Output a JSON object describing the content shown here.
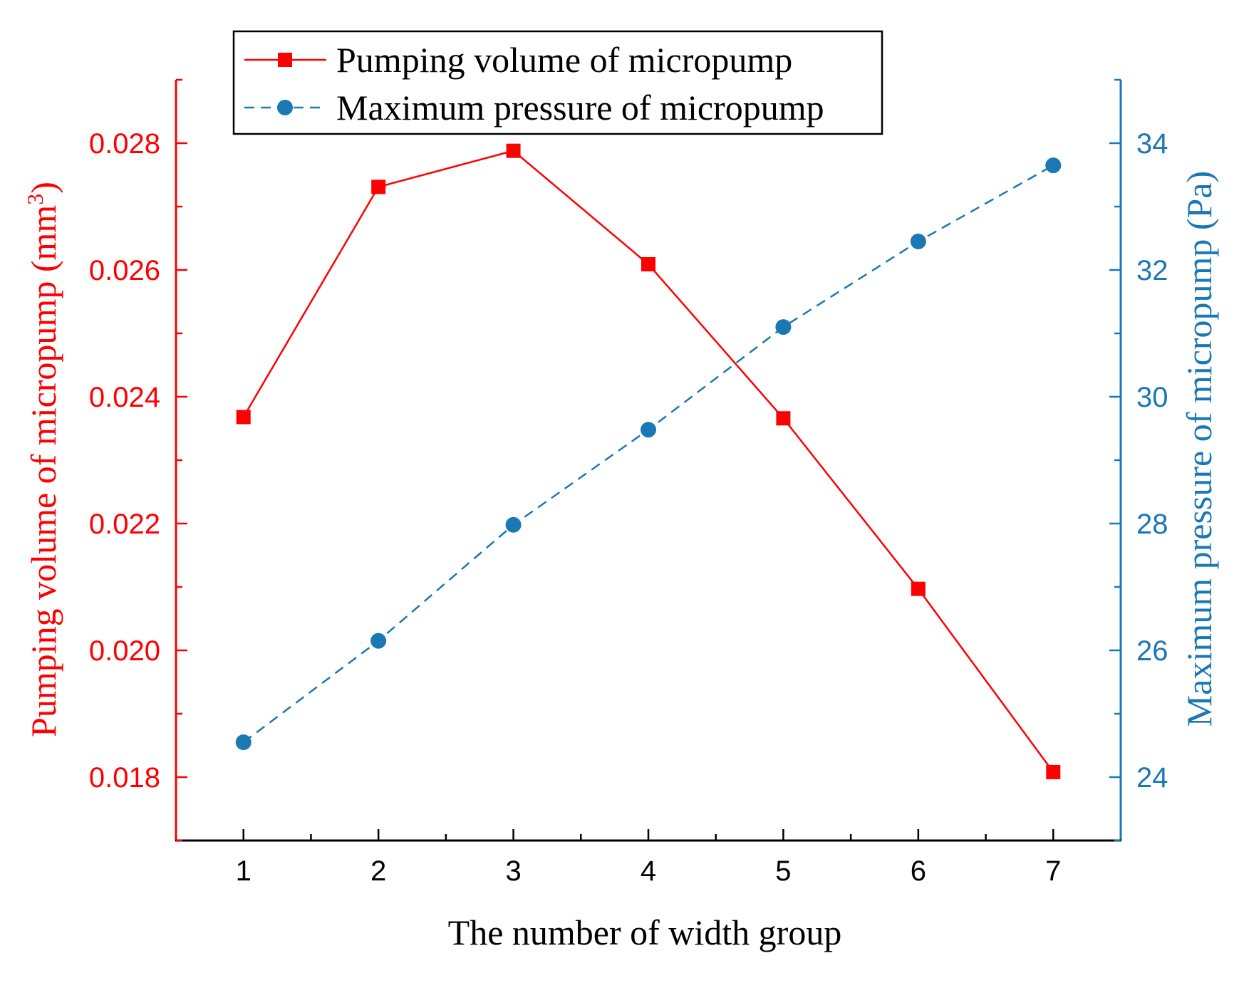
{
  "chart_data": {
    "type": "line",
    "title": "",
    "xlabel": "The number of width group",
    "x": [
      1,
      2,
      3,
      4,
      5,
      6,
      7
    ],
    "xlim": [
      0.5,
      7.5
    ],
    "xticks": [
      "1",
      "2",
      "3",
      "4",
      "5",
      "6",
      "7"
    ],
    "y_left": {
      "label": "Pumping volume of micropump (mm",
      "label_sup": "3",
      "label_end": ")",
      "ylim": [
        0.017,
        0.029
      ],
      "major_ticks": [
        0.018,
        0.02,
        0.022,
        0.024,
        0.026,
        0.028
      ],
      "tick_labels": [
        "0.018",
        "0.020",
        "0.022",
        "0.024",
        "0.026",
        "0.028"
      ],
      "color": "#ff0000"
    },
    "y_right": {
      "label": "Maximum pressure of micropump (Pa)",
      "ylim": [
        23,
        35
      ],
      "major_ticks": [
        24,
        26,
        28,
        30,
        32,
        34
      ],
      "tick_labels": [
        "24",
        "26",
        "28",
        "30",
        "32",
        "34"
      ],
      "color": "#1a78b4"
    },
    "series": [
      {
        "name": "Pumping volume of micropump",
        "axis": "left",
        "marker": "square",
        "line_style": "solid",
        "color": "#ff0000",
        "values": [
          0.02368,
          0.02731,
          0.02788,
          0.02609,
          0.02366,
          0.02097,
          0.01808
        ]
      },
      {
        "name": "Maximum pressure of micropump",
        "axis": "right",
        "marker": "circle",
        "line_style": "dashed",
        "color": "#1a78b4",
        "values": [
          24.55,
          26.15,
          27.98,
          29.48,
          31.1,
          32.45,
          33.65
        ]
      }
    ],
    "legend_position": "top-center",
    "grid": false
  }
}
